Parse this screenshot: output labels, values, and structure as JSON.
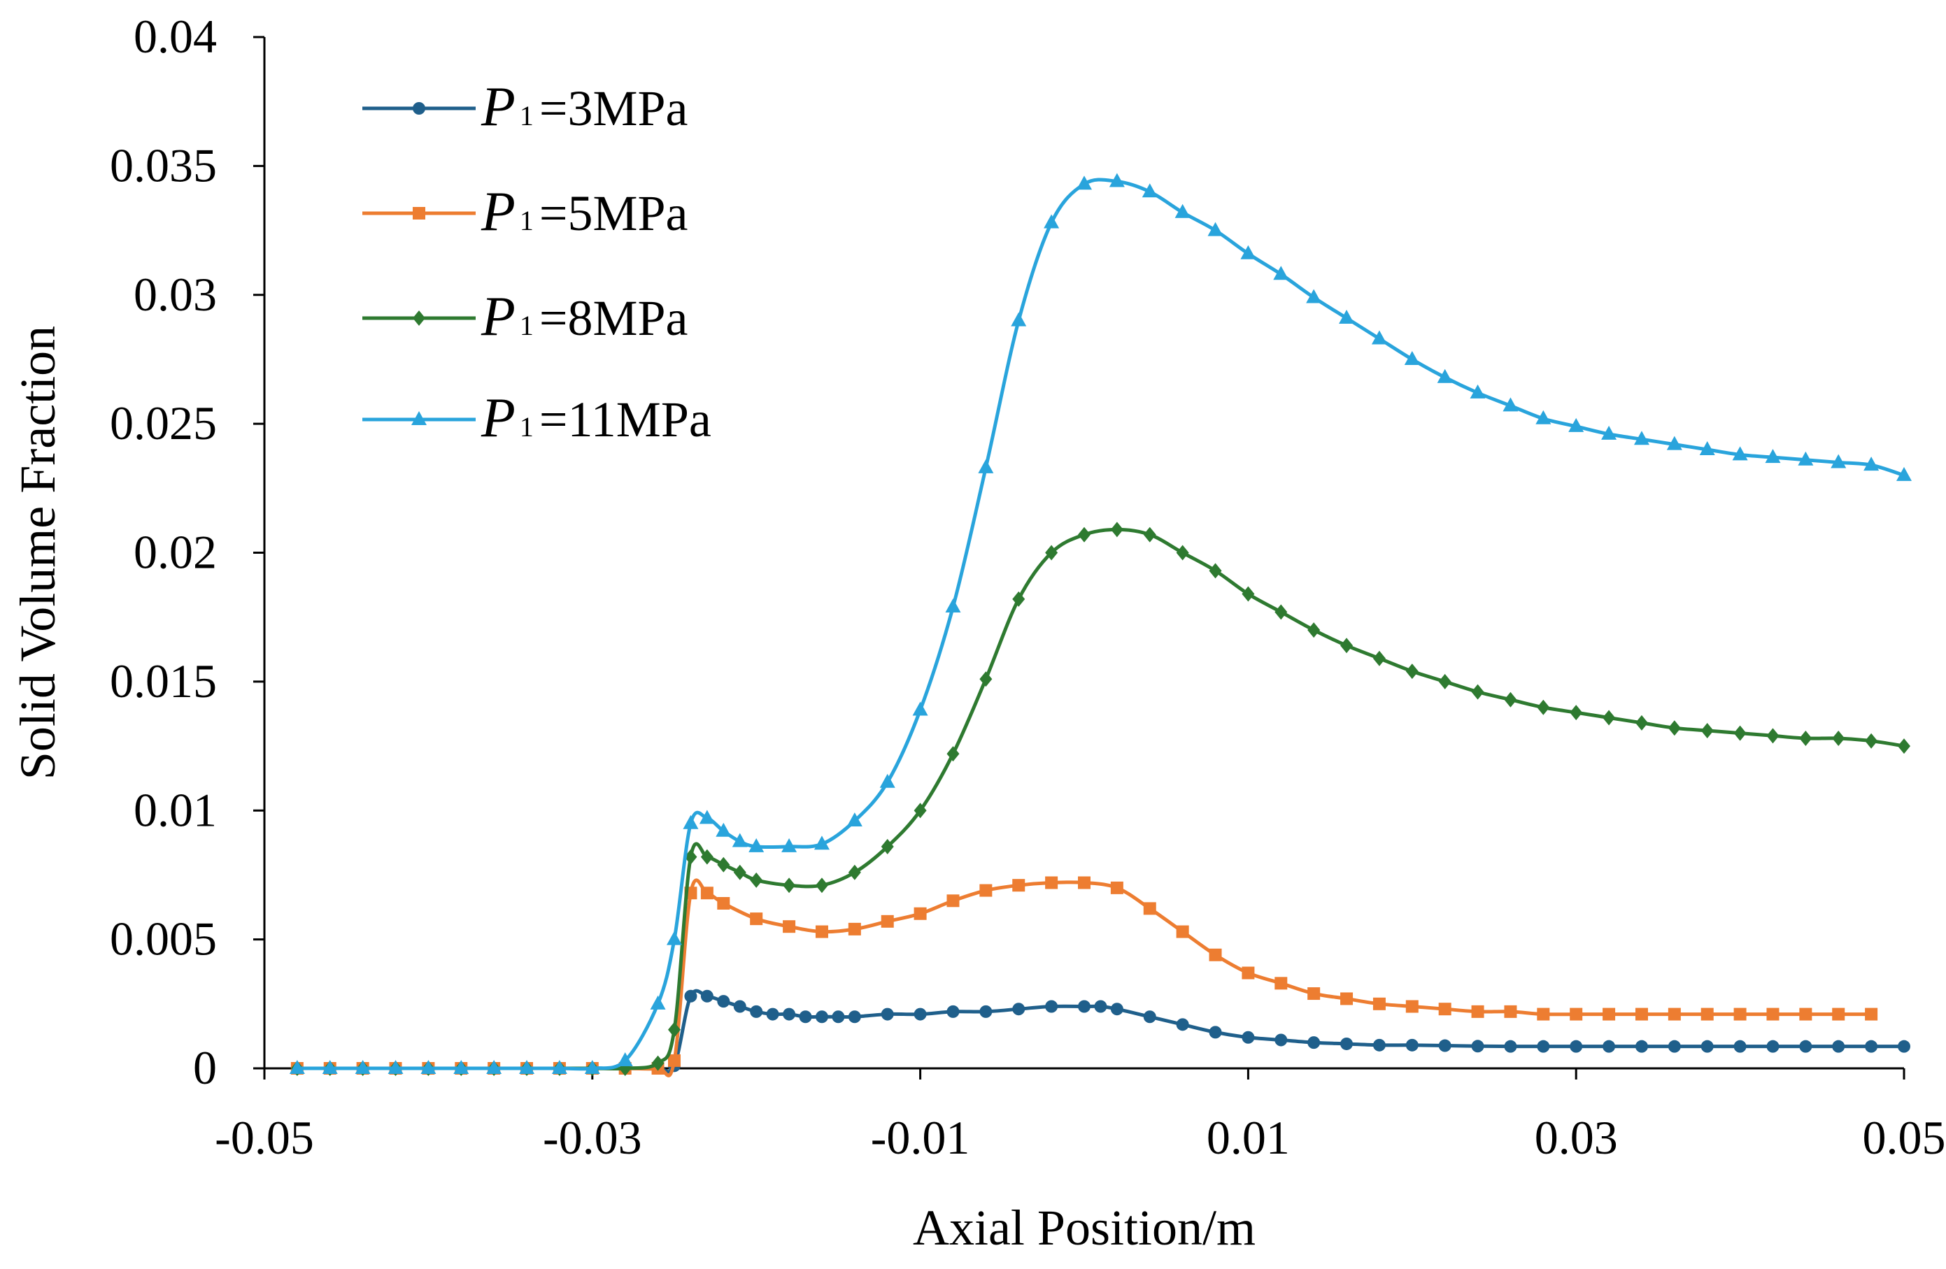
{
  "chart_data": {
    "type": "line",
    "title": "",
    "xlabel": "Axial Position/m",
    "ylabel": "Solid Volume Fraction",
    "xlim": [
      -0.05,
      0.05
    ],
    "ylim": [
      0,
      0.04
    ],
    "xticks": [
      -0.05,
      -0.03,
      -0.01,
      0.01,
      0.03,
      0.05
    ],
    "xtick_labels": [
      "-0.05",
      "-0.03",
      "-0.01",
      "0.01",
      "0.03",
      "0.05"
    ],
    "yticks": [
      0,
      0.005,
      0.01,
      0.015,
      0.02,
      0.025,
      0.03,
      0.035,
      0.04
    ],
    "ytick_labels": [
      "0",
      "0.005",
      "0.01",
      "0.015",
      "0.02",
      "0.025",
      "0.03",
      "0.035",
      "0.04"
    ],
    "grid": false,
    "legend_position": "top-left",
    "series": [
      {
        "name": "P1=3MPa",
        "label_symbol": "P",
        "label_subscript": "1",
        "label_text": "=3MPa",
        "color": "#1f5f8b",
        "marker": "circle",
        "x": [
          -0.048,
          -0.046,
          -0.044,
          -0.042,
          -0.04,
          -0.038,
          -0.036,
          -0.034,
          -0.032,
          -0.03,
          -0.028,
          -0.026,
          -0.025,
          -0.024,
          -0.023,
          -0.022,
          -0.021,
          -0.02,
          -0.019,
          -0.018,
          -0.017,
          -0.016,
          -0.015,
          -0.014,
          -0.012,
          -0.01,
          -0.008,
          -0.006,
          -0.004,
          -0.002,
          0.0,
          0.001,
          0.002,
          0.004,
          0.006,
          0.008,
          0.01,
          0.012,
          0.014,
          0.016,
          0.018,
          0.02,
          0.022,
          0.024,
          0.026,
          0.028,
          0.03,
          0.032,
          0.034,
          0.036,
          0.038,
          0.04,
          0.042,
          0.044,
          0.046,
          0.048,
          0.05
        ],
        "y": [
          0,
          0,
          0,
          0,
          0,
          0,
          0,
          0,
          0,
          0,
          0,
          0,
          0.0001,
          0.0028,
          0.0028,
          0.0026,
          0.0024,
          0.0022,
          0.0021,
          0.0021,
          0.002,
          0.002,
          0.002,
          0.002,
          0.0021,
          0.0021,
          0.0022,
          0.0022,
          0.0023,
          0.0024,
          0.0024,
          0.0024,
          0.0023,
          0.002,
          0.0017,
          0.0014,
          0.0012,
          0.0011,
          0.001,
          0.00095,
          0.0009,
          0.0009,
          0.00088,
          0.00086,
          0.00085,
          0.00085,
          0.00085,
          0.00085,
          0.00085,
          0.00085,
          0.00085,
          0.00085,
          0.00085,
          0.00085,
          0.00085,
          0.00085,
          0.00085
        ]
      },
      {
        "name": "P1=5MPa",
        "label_symbol": "P",
        "label_subscript": "1",
        "label_text": "=5MPa",
        "color": "#ed7d31",
        "marker": "square",
        "x": [
          -0.048,
          -0.046,
          -0.044,
          -0.042,
          -0.04,
          -0.038,
          -0.036,
          -0.034,
          -0.032,
          -0.03,
          -0.028,
          -0.026,
          -0.025,
          -0.024,
          -0.023,
          -0.022,
          -0.02,
          -0.018,
          -0.016,
          -0.014,
          -0.012,
          -0.01,
          -0.008,
          -0.006,
          -0.004,
          -0.002,
          0.0,
          0.002,
          0.004,
          0.006,
          0.008,
          0.01,
          0.012,
          0.014,
          0.016,
          0.018,
          0.02,
          0.022,
          0.024,
          0.026,
          0.028,
          0.03,
          0.032,
          0.034,
          0.036,
          0.038,
          0.04,
          0.042,
          0.044,
          0.046,
          0.048
        ],
        "y": [
          0,
          0,
          0,
          0,
          0,
          0,
          0,
          0,
          0,
          0,
          0,
          0,
          0.0003,
          0.0068,
          0.0068,
          0.0064,
          0.0058,
          0.0055,
          0.0053,
          0.0054,
          0.0057,
          0.006,
          0.0065,
          0.0069,
          0.0071,
          0.0072,
          0.0072,
          0.007,
          0.0062,
          0.0053,
          0.0044,
          0.0037,
          0.0033,
          0.0029,
          0.0027,
          0.0025,
          0.0024,
          0.0023,
          0.0022,
          0.0022,
          0.0021,
          0.0021,
          0.0021,
          0.0021,
          0.0021,
          0.0021,
          0.0021,
          0.0021,
          0.0021,
          0.0021,
          0.0021
        ]
      },
      {
        "name": "P1=8MPa",
        "label_symbol": "P",
        "label_subscript": "1",
        "label_text": "=8MPa",
        "color": "#2e7a30",
        "marker": "diamond",
        "x": [
          -0.048,
          -0.046,
          -0.044,
          -0.042,
          -0.04,
          -0.038,
          -0.036,
          -0.034,
          -0.032,
          -0.03,
          -0.028,
          -0.026,
          -0.025,
          -0.024,
          -0.023,
          -0.022,
          -0.021,
          -0.02,
          -0.018,
          -0.016,
          -0.014,
          -0.012,
          -0.01,
          -0.008,
          -0.006,
          -0.004,
          -0.002,
          0.0,
          0.002,
          0.004,
          0.006,
          0.008,
          0.01,
          0.012,
          0.014,
          0.016,
          0.018,
          0.02,
          0.022,
          0.024,
          0.026,
          0.028,
          0.03,
          0.032,
          0.034,
          0.036,
          0.038,
          0.04,
          0.042,
          0.044,
          0.046,
          0.048,
          0.05
        ],
        "y": [
          0,
          0,
          0,
          0,
          0,
          0,
          0,
          0,
          0,
          0,
          0,
          0.0002,
          0.0015,
          0.0082,
          0.0082,
          0.0079,
          0.0076,
          0.0073,
          0.0071,
          0.0071,
          0.0076,
          0.0086,
          0.01,
          0.0122,
          0.0151,
          0.0182,
          0.02,
          0.0207,
          0.0209,
          0.0207,
          0.02,
          0.0193,
          0.0184,
          0.0177,
          0.017,
          0.0164,
          0.0159,
          0.0154,
          0.015,
          0.0146,
          0.0143,
          0.014,
          0.0138,
          0.0136,
          0.0134,
          0.0132,
          0.0131,
          0.013,
          0.0129,
          0.0128,
          0.0128,
          0.0127,
          0.0125
        ]
      },
      {
        "name": "P1=11MPa",
        "label_symbol": "P",
        "label_subscript": "1",
        "label_text": "=11MPa",
        "color": "#29a4dc",
        "marker": "triangle",
        "x": [
          -0.048,
          -0.046,
          -0.044,
          -0.042,
          -0.04,
          -0.038,
          -0.036,
          -0.034,
          -0.032,
          -0.03,
          -0.028,
          -0.026,
          -0.025,
          -0.024,
          -0.023,
          -0.022,
          -0.021,
          -0.02,
          -0.018,
          -0.016,
          -0.014,
          -0.012,
          -0.01,
          -0.008,
          -0.006,
          -0.004,
          -0.002,
          0.0,
          0.002,
          0.004,
          0.006,
          0.008,
          0.01,
          0.012,
          0.014,
          0.016,
          0.018,
          0.02,
          0.022,
          0.024,
          0.026,
          0.028,
          0.03,
          0.032,
          0.034,
          0.036,
          0.038,
          0.04,
          0.042,
          0.044,
          0.046,
          0.048,
          0.05
        ],
        "y": [
          0,
          0,
          0,
          0,
          0,
          0,
          0,
          0,
          0,
          0,
          0.0003,
          0.0025,
          0.005,
          0.0095,
          0.0097,
          0.0092,
          0.0088,
          0.0086,
          0.0086,
          0.0087,
          0.0096,
          0.0111,
          0.0139,
          0.0179,
          0.0233,
          0.029,
          0.0328,
          0.0343,
          0.0344,
          0.034,
          0.0332,
          0.0325,
          0.0316,
          0.0308,
          0.0299,
          0.0291,
          0.0283,
          0.0275,
          0.0268,
          0.0262,
          0.0257,
          0.0252,
          0.0249,
          0.0246,
          0.0244,
          0.0242,
          0.024,
          0.0238,
          0.0237,
          0.0236,
          0.0235,
          0.0234,
          0.023
        ]
      }
    ]
  }
}
